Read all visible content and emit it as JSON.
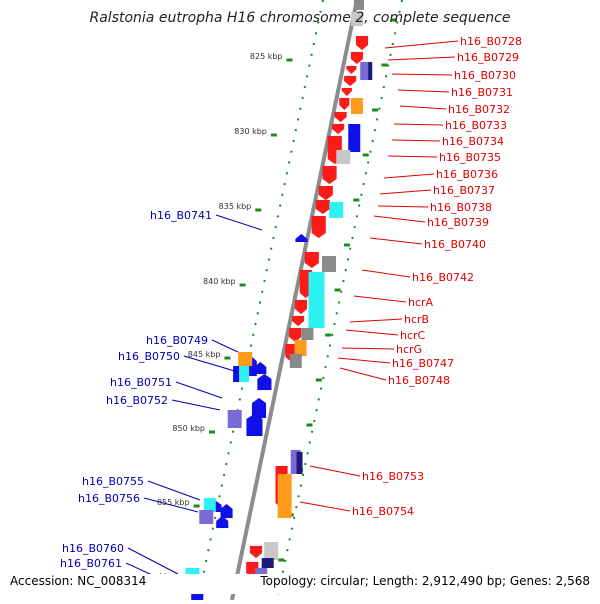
{
  "title": "Ralstonia eutropha H16 chromosome 2, complete sequence",
  "footer": {
    "accession": "Accession: NC_008314",
    "summary": "Topology: circular; Length: 2,912,490 bp; Genes: 2,568"
  },
  "colors": {
    "backbone": "#8c8c8c",
    "tick": "#1a8c1a",
    "forward_label": "#e00000",
    "reverse_label": "#0000b0",
    "red": "#ff1a1a",
    "blue": "#1010e8",
    "orange": "#ff9a1a",
    "cyan": "#2ef2f2",
    "purple": "#7a6ad6",
    "gray": "#8a8a8a",
    "navy": "#1a1a7a",
    "lightgray": "#c8c8c8"
  },
  "scale_labels": [
    {
      "text": "825 kbp"
    },
    {
      "text": "830 kbp"
    },
    {
      "text": "835 kbp"
    },
    {
      "text": "840 kbp"
    },
    {
      "text": "845 kbp"
    },
    {
      "text": "850 kbp"
    },
    {
      "text": "855 kbp"
    },
    {
      "text": "kbp"
    }
  ],
  "forward_genes": [
    "h16_B0728",
    "h16_B0729",
    "h16_B0730",
    "h16_B0731",
    "h16_B0732",
    "h16_B0733",
    "h16_B0734",
    "h16_B0735",
    "h16_B0736",
    "h16_B0737",
    "h16_B0738",
    "h16_B0739",
    "h16_B0740",
    "h16_B0742",
    "hcrA",
    "hcrB",
    "hcrC",
    "hcrG",
    "h16_B0747",
    "h16_B0748",
    "h16_B0753",
    "h16_B0754"
  ],
  "reverse_genes": [
    "h16_B0741",
    "h16_B0749",
    "h16_B0750",
    "h16_B0751",
    "h16_B0752",
    "h16_B0755",
    "h16_B0756",
    "h16_B0760",
    "h16_B0761"
  ]
}
